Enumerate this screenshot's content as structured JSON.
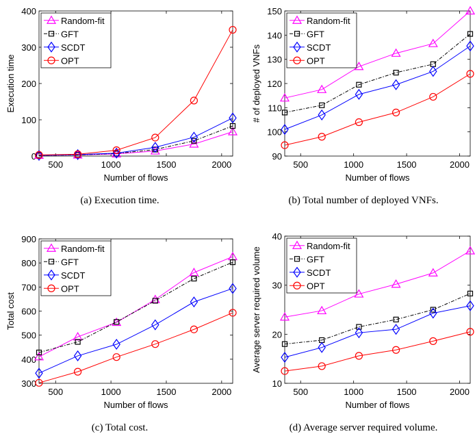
{
  "chart_data": [
    {
      "type": "line",
      "caption": "(a) Execution time.",
      "xlabel": "Number of flows",
      "ylabel": "Execution time",
      "xlim": [
        350,
        2100
      ],
      "ylim": [
        0,
        400
      ],
      "xticks": [
        500,
        1000,
        1500,
        2000
      ],
      "yticks": [
        0,
        100,
        200,
        300,
        400
      ],
      "x": [
        350,
        700,
        1050,
        1400,
        1750,
        2100
      ],
      "legend": "top-left",
      "series": [
        {
          "name": "Random-fit",
          "values": [
            2,
            3,
            6,
            14,
            33,
            67
          ]
        },
        {
          "name": "GFT",
          "values": [
            2,
            3,
            7,
            18,
            42,
            83
          ]
        },
        {
          "name": "SCDT",
          "values": [
            2,
            4,
            8,
            24,
            52,
            105
          ]
        },
        {
          "name": "OPT",
          "values": [
            3,
            5,
            16,
            51,
            153,
            348
          ]
        }
      ]
    },
    {
      "type": "line",
      "caption": "(b) Total number of deployed VNFs.",
      "xlabel": "Number of flows",
      "ylabel": "# of deployed VNFs",
      "xlim": [
        350,
        2100
      ],
      "ylim": [
        90,
        150
      ],
      "xticks": [
        500,
        1000,
        1500,
        2000
      ],
      "yticks": [
        90,
        100,
        110,
        120,
        130,
        140,
        150
      ],
      "x": [
        350,
        700,
        1050,
        1400,
        1750,
        2100
      ],
      "legend": "top-left",
      "series": [
        {
          "name": "Random-fit",
          "values": [
            114,
            117.5,
            127,
            132.5,
            136.5,
            150
          ]
        },
        {
          "name": "GFT",
          "values": [
            108,
            111,
            119.5,
            124.5,
            128,
            140.5
          ]
        },
        {
          "name": "SCDT",
          "values": [
            101,
            107,
            115.5,
            119.5,
            125,
            135.5
          ]
        },
        {
          "name": "OPT",
          "values": [
            94.5,
            98,
            104,
            108,
            114.5,
            124
          ]
        }
      ]
    },
    {
      "type": "line",
      "caption": "(c) Total cost.",
      "xlabel": "Number of flows",
      "ylabel": "Total cost",
      "xlim": [
        350,
        2100
      ],
      "ylim": [
        300,
        900
      ],
      "xticks": [
        500,
        1000,
        1500,
        2000
      ],
      "yticks": [
        300,
        400,
        500,
        600,
        700,
        800,
        900
      ],
      "x": [
        350,
        700,
        1050,
        1400,
        1750,
        2100
      ],
      "legend": "top-left",
      "series": [
        {
          "name": "Random-fit",
          "values": [
            410,
            493,
            553,
            648,
            760,
            826
          ]
        },
        {
          "name": "GFT",
          "values": [
            428,
            472,
            555,
            643,
            735,
            803
          ]
        },
        {
          "name": "SCDT",
          "values": [
            342,
            414,
            462,
            543,
            638,
            694
          ]
        },
        {
          "name": "OPT",
          "values": [
            302,
            348,
            409,
            463,
            524,
            593
          ]
        }
      ]
    },
    {
      "type": "line",
      "caption": "(d) Average server required volume.",
      "xlabel": "Number of flows",
      "ylabel": "Average server required volume",
      "xlim": [
        350,
        2100
      ],
      "ylim": [
        10,
        40
      ],
      "xticks": [
        500,
        1000,
        1500,
        2000
      ],
      "yticks": [
        10,
        20,
        30,
        40
      ],
      "x": [
        350,
        700,
        1050,
        1400,
        1750,
        2100
      ],
      "legend": "top-left",
      "series": [
        {
          "name": "Random-fit",
          "values": [
            23.5,
            24.8,
            28.2,
            30.2,
            32.5,
            37
          ]
        },
        {
          "name": "GFT",
          "values": [
            18,
            18.8,
            21.5,
            23,
            25,
            28.3
          ]
        },
        {
          "name": "SCDT",
          "values": [
            15.3,
            17.3,
            20.3,
            21,
            24.3,
            25.8
          ]
        },
        {
          "name": "OPT",
          "values": [
            12.5,
            13.5,
            15.6,
            16.8,
            18.6,
            20.5
          ]
        }
      ]
    }
  ],
  "series_styles": [
    {
      "color": "#ff00ff",
      "marker": "triangle-marker",
      "dash": "solid"
    },
    {
      "color": "#000000",
      "marker": "square-marker",
      "dash": "dashdot"
    },
    {
      "color": "#0000ff",
      "marker": "diamond-marker",
      "dash": "solid"
    },
    {
      "color": "#ff0000",
      "marker": "circle-marker",
      "dash": "solid"
    }
  ]
}
